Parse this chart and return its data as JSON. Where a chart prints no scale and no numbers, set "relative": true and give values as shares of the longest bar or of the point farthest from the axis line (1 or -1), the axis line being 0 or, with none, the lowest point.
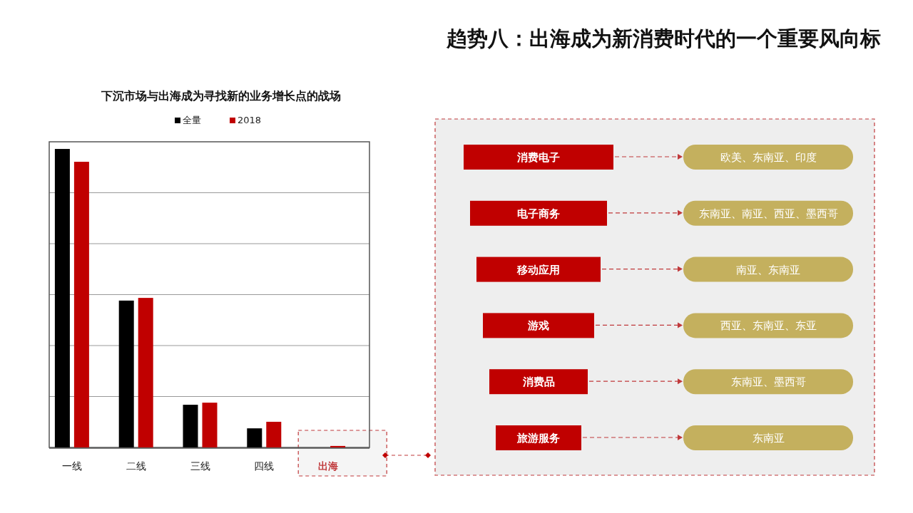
{
  "chart_data": [
    {
      "type": "bar",
      "title": "下沉市场与出海成为寻找新的业务增长点的战场",
      "annotations": [
        "趋势八：出海成为新消费时代的一个重要风向标"
      ],
      "categories": [
        "一线",
        "二线",
        "三线",
        "四线",
        "出海"
      ],
      "relative": true,
      "legend": "top",
      "grid": "y",
      "series": [
        {
          "name": "全量",
          "color": "#000000",
          "values": [
            1,
            0.492,
            0.143,
            0.064,
            0
          ]
        },
        {
          "name": "2018",
          "color": "#c00000",
          "values": [
            0.957,
            0.501,
            0.15,
            0.086,
            0.005
          ]
        }
      ]
    },
    {
      "type": "other",
      "annotations": [
        "消费电子",
        "欧美、东南亚、印度",
        "电子商务",
        "东南亚、南亚、西亚、墨西哥",
        "移动应用",
        "南亚、东南亚",
        "游戏",
        "西亚、东南亚、东亚",
        "消费品",
        "东南亚、墨西哥",
        "旅游服务",
        "东南亚"
      ]
    }
  ]
}
